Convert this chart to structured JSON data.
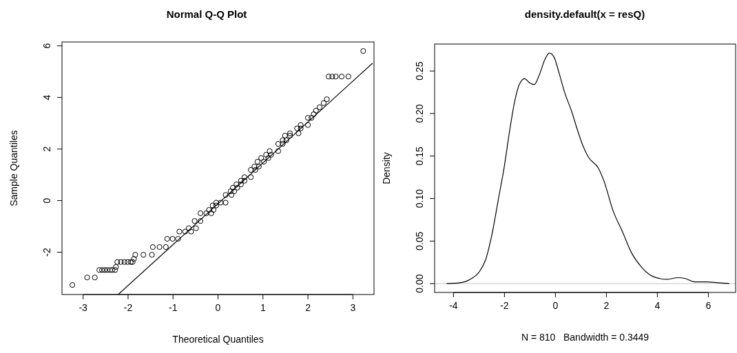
{
  "chart_data": [
    {
      "type": "scatter",
      "title": "Normal Q-Q Plot",
      "xlabel": "Theoretical Quantiles",
      "ylabel": "Sample Quantiles",
      "xlim": [
        -3.47,
        3.47
      ],
      "ylim": [
        -3.64,
        6.15
      ],
      "xticks": [
        -3,
        -2,
        -1,
        0,
        1,
        2,
        3
      ],
      "yticks": [
        -2,
        0,
        2,
        4,
        6
      ],
      "series": [
        {
          "marker": "circle",
          "color": "#000000",
          "x": [
            -3.24,
            -2.91,
            -2.74,
            -2.64,
            -2.58,
            -2.52,
            -2.46,
            -2.4,
            -2.35,
            -2.29,
            -2.27,
            -2.24,
            -2.16,
            -2.08,
            -2.01,
            -1.94,
            -1.9,
            -1.87,
            -1.84,
            -1.66,
            -1.47,
            -1.45,
            -1.3,
            -1.16,
            -1.13,
            -1.01,
            -0.89,
            -0.86,
            -0.73,
            -0.6,
            -0.65,
            -0.49,
            -0.52,
            -0.39,
            -0.39,
            -0.26,
            -0.15,
            -0.2,
            -0.1,
            -0.12,
            -0.04,
            -0.04,
            0.06,
            0.17,
            0.17,
            0.3,
            0.28,
            0.36,
            0.33,
            0.43,
            0.41,
            0.51,
            0.51,
            0.59,
            0.59,
            0.73,
            0.73,
            0.83,
            0.81,
            0.91,
            0.88,
            1.02,
            0.96,
            1.12,
            1.07,
            1.18,
            1.15,
            1.34,
            1.34,
            1.44,
            1.44,
            1.52,
            1.49,
            1.6,
            1.6,
            1.79,
            1.76,
            1.84,
            1.84,
            2.0,
            2.0,
            2.08,
            2.13,
            2.18,
            2.26,
            2.35,
            2.42,
            2.46,
            2.54,
            2.62,
            2.75,
            2.9,
            3.23
          ],
          "values": [
            -3.27,
            -2.98,
            -2.98,
            -2.69,
            -2.69,
            -2.69,
            -2.69,
            -2.69,
            -2.69,
            -2.69,
            -2.57,
            -2.38,
            -2.38,
            -2.38,
            -2.38,
            -2.38,
            -2.38,
            -2.26,
            -2.1,
            -2.1,
            -2.1,
            -1.8,
            -1.8,
            -1.8,
            -1.48,
            -1.48,
            -1.48,
            -1.2,
            -1.2,
            -1.2,
            -1.07,
            -1.07,
            -0.79,
            -0.79,
            -0.49,
            -0.49,
            -0.49,
            -0.36,
            -0.36,
            -0.19,
            -0.19,
            -0.08,
            -0.08,
            -0.08,
            0.22,
            0.22,
            0.36,
            0.36,
            0.5,
            0.5,
            0.63,
            0.63,
            0.77,
            0.77,
            0.91,
            0.91,
            1.19,
            1.19,
            1.32,
            1.32,
            1.51,
            1.51,
            1.65,
            1.65,
            1.78,
            1.78,
            1.92,
            1.92,
            2.2,
            2.2,
            2.34,
            2.34,
            2.52,
            2.52,
            2.61,
            2.61,
            2.8,
            2.8,
            2.93,
            2.93,
            3.21,
            3.21,
            3.35,
            3.49,
            3.62,
            3.78,
            3.93,
            4.81,
            4.81,
            4.81,
            4.81,
            4.81,
            5.8
          ]
        },
        {
          "type": "line",
          "color": "#000000",
          "x": [
            -2.22,
            3.44
          ],
          "values": [
            -3.64,
            5.33
          ]
        }
      ]
    },
    {
      "type": "line",
      "title": "density.default(x = resQ)",
      "xlabel": "N = 810   Bandwidth = 0.3449",
      "ylabel": "Density",
      "xlim": [
        -4.74,
        7.07
      ],
      "ylim": [
        -0.0104,
        0.2817
      ],
      "xticks": [
        -4,
        -2,
        0,
        2,
        4,
        6
      ],
      "yticks": [
        {
          "value": 0,
          "label": "0.00"
        },
        {
          "value": 0.05,
          "label": "0.05"
        },
        {
          "value": 0.1,
          "label": "0.10"
        },
        {
          "value": 0.15,
          "label": "0.15"
        },
        {
          "value": 0.2,
          "label": "0.20"
        },
        0.25
      ],
      "ref_lines": [
        {
          "axis": "y",
          "value": 0,
          "color": "#c8c8c8"
        }
      ],
      "series": [
        {
          "color": "#000000",
          "x": [
            -4.27,
            -3.74,
            -3.29,
            -3.01,
            -2.74,
            -2.47,
            -2.24,
            -2.01,
            -1.79,
            -1.6,
            -1.42,
            -1.21,
            -1.01,
            -0.83,
            -0.65,
            -0.42,
            -0.24,
            -0.05,
            0.13,
            0.36,
            0.63,
            0.86,
            1.08,
            1.31,
            1.68,
            1.9,
            2.27,
            2.63,
            2.99,
            3.36,
            3.72,
            4.09,
            4.36,
            4.82,
            5.09,
            5.46,
            5.91,
            6.37,
            6.82
          ],
          "values": [
            0.0,
            0.001,
            0.006,
            0.013,
            0.028,
            0.061,
            0.099,
            0.137,
            0.181,
            0.214,
            0.234,
            0.241,
            0.236,
            0.234,
            0.244,
            0.263,
            0.271,
            0.266,
            0.249,
            0.225,
            0.203,
            0.181,
            0.162,
            0.148,
            0.136,
            0.121,
            0.085,
            0.061,
            0.036,
            0.02,
            0.01,
            0.006,
            0.005,
            0.007,
            0.006,
            0.002,
            0.002,
            0.001,
            0.0
          ]
        }
      ]
    }
  ]
}
